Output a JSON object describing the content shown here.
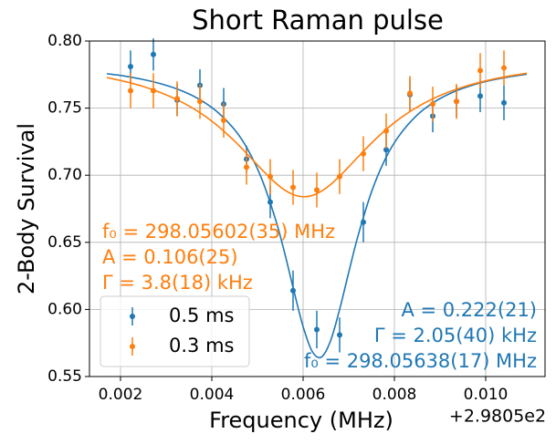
{
  "chart_data": {
    "type": "errorbar",
    "title": "Short Raman pulse",
    "xlabel": "Frequency (MHz)",
    "ylabel": "2-Body Survival",
    "x_offset_label": "+2.9805e2",
    "xlim": [
      0.00132,
      0.0113
    ],
    "ylim": [
      0.55,
      0.8
    ],
    "xticks": [
      0.002,
      0.004,
      0.006,
      0.008,
      {
        "value": 0.01,
        "label": "0.010"
      }
    ],
    "yticks": [
      0.55,
      {
        "value": 0.6,
        "label": "0.60"
      },
      0.65,
      {
        "value": 0.7,
        "label": "0.70"
      },
      0.75,
      {
        "value": 0.8,
        "label": "0.80"
      }
    ],
    "grid": true,
    "legend": "lower left",
    "series": [
      {
        "name": "0.5 ms",
        "color": "#1f77b4",
        "x": [
          0.00222,
          0.00272,
          0.00324,
          0.00374,
          0.00426,
          0.00476,
          0.00528,
          0.00578,
          0.0063,
          0.0068,
          0.00732,
          0.00782,
          0.00834,
          0.00884,
          0.00936,
          0.00988,
          0.0104
        ],
        "values": [
          0.781,
          0.79,
          0.756,
          0.767,
          0.753,
          0.712,
          0.68,
          0.614,
          0.585,
          0.581,
          0.665,
          0.719,
          0.76,
          0.744,
          0.755,
          0.759,
          0.754
        ],
        "errors": [
          0.012,
          0.012,
          0.012,
          0.012,
          0.012,
          0.01,
          0.012,
          0.015,
          0.014,
          0.013,
          0.015,
          0.012,
          0.012,
          0.012,
          0.012,
          0.012,
          0.013
        ]
      },
      {
        "name": "0.3 ms",
        "color": "#ff7f0e",
        "x": [
          0.00222,
          0.00272,
          0.00324,
          0.00374,
          0.00426,
          0.00476,
          0.00528,
          0.00578,
          0.0063,
          0.0068,
          0.00732,
          0.00782,
          0.00834,
          0.00884,
          0.00936,
          0.00988,
          0.0104
        ],
        "values": [
          0.763,
          0.763,
          0.757,
          0.755,
          0.741,
          0.706,
          0.699,
          0.691,
          0.689,
          0.699,
          0.716,
          0.733,
          0.761,
          0.753,
          0.755,
          0.778,
          0.78
        ],
        "errors": [
          0.013,
          0.013,
          0.013,
          0.013,
          0.013,
          0.013,
          0.013,
          0.013,
          0.013,
          0.013,
          0.013,
          0.013,
          0.013,
          0.013,
          0.013,
          0.013,
          0.013
        ]
      }
    ],
    "fit_x": [
      0.0017,
      0.0021,
      0.0025,
      0.0029,
      0.0033,
      0.0037,
      0.0041,
      0.0045,
      0.0048,
      0.0051,
      0.0054,
      0.0056,
      0.0058,
      0.006,
      0.0062,
      0.0064,
      0.0066,
      0.0068,
      0.007,
      0.0072,
      0.0075,
      0.0078,
      0.0081,
      0.0085,
      0.0089,
      0.0093,
      0.0097,
      0.0101,
      0.0105,
      0.0109
    ],
    "fits": [
      {
        "color": "#1f77b4",
        "values": [
          0.7757,
          0.7738,
          0.7713,
          0.768,
          0.7635,
          0.7571,
          0.7478,
          0.7339,
          0.7185,
          0.6967,
          0.6666,
          0.6415,
          0.6136,
          0.5872,
          0.5687,
          0.5645,
          0.5765,
          0.6,
          0.6277,
          0.6545,
          0.6877,
          0.7121,
          0.7293,
          0.7449,
          0.7551,
          0.7621,
          0.767,
          0.7706,
          0.7732,
          0.7753
        ]
      },
      {
        "color": "#ff7f0e",
        "values": [
          0.7728,
          0.7698,
          0.7661,
          0.7613,
          0.7552,
          0.7475,
          0.7376,
          0.7254,
          0.7149,
          0.7041,
          0.6942,
          0.6889,
          0.6854,
          0.684,
          0.6849,
          0.6881,
          0.693,
          0.6993,
          0.7063,
          0.7135,
          0.724,
          0.7335,
          0.7418,
          0.7508,
          0.7579,
          0.7634,
          0.7677,
          0.7711,
          0.7738,
          0.776
        ]
      }
    ],
    "annotations": [
      {
        "color": "#ff7f0e",
        "lines": [
          "f₀ = 298.05602(35) MHz",
          "A = 0.106(25)",
          "Γ = 3.8(18) kHz"
        ]
      },
      {
        "color": "#1f77b4",
        "lines": [
          "A = 0.222(21)",
          "Γ = 2.05(40) kHz",
          "f₀ = 298.05638(17) MHz"
        ]
      }
    ]
  }
}
